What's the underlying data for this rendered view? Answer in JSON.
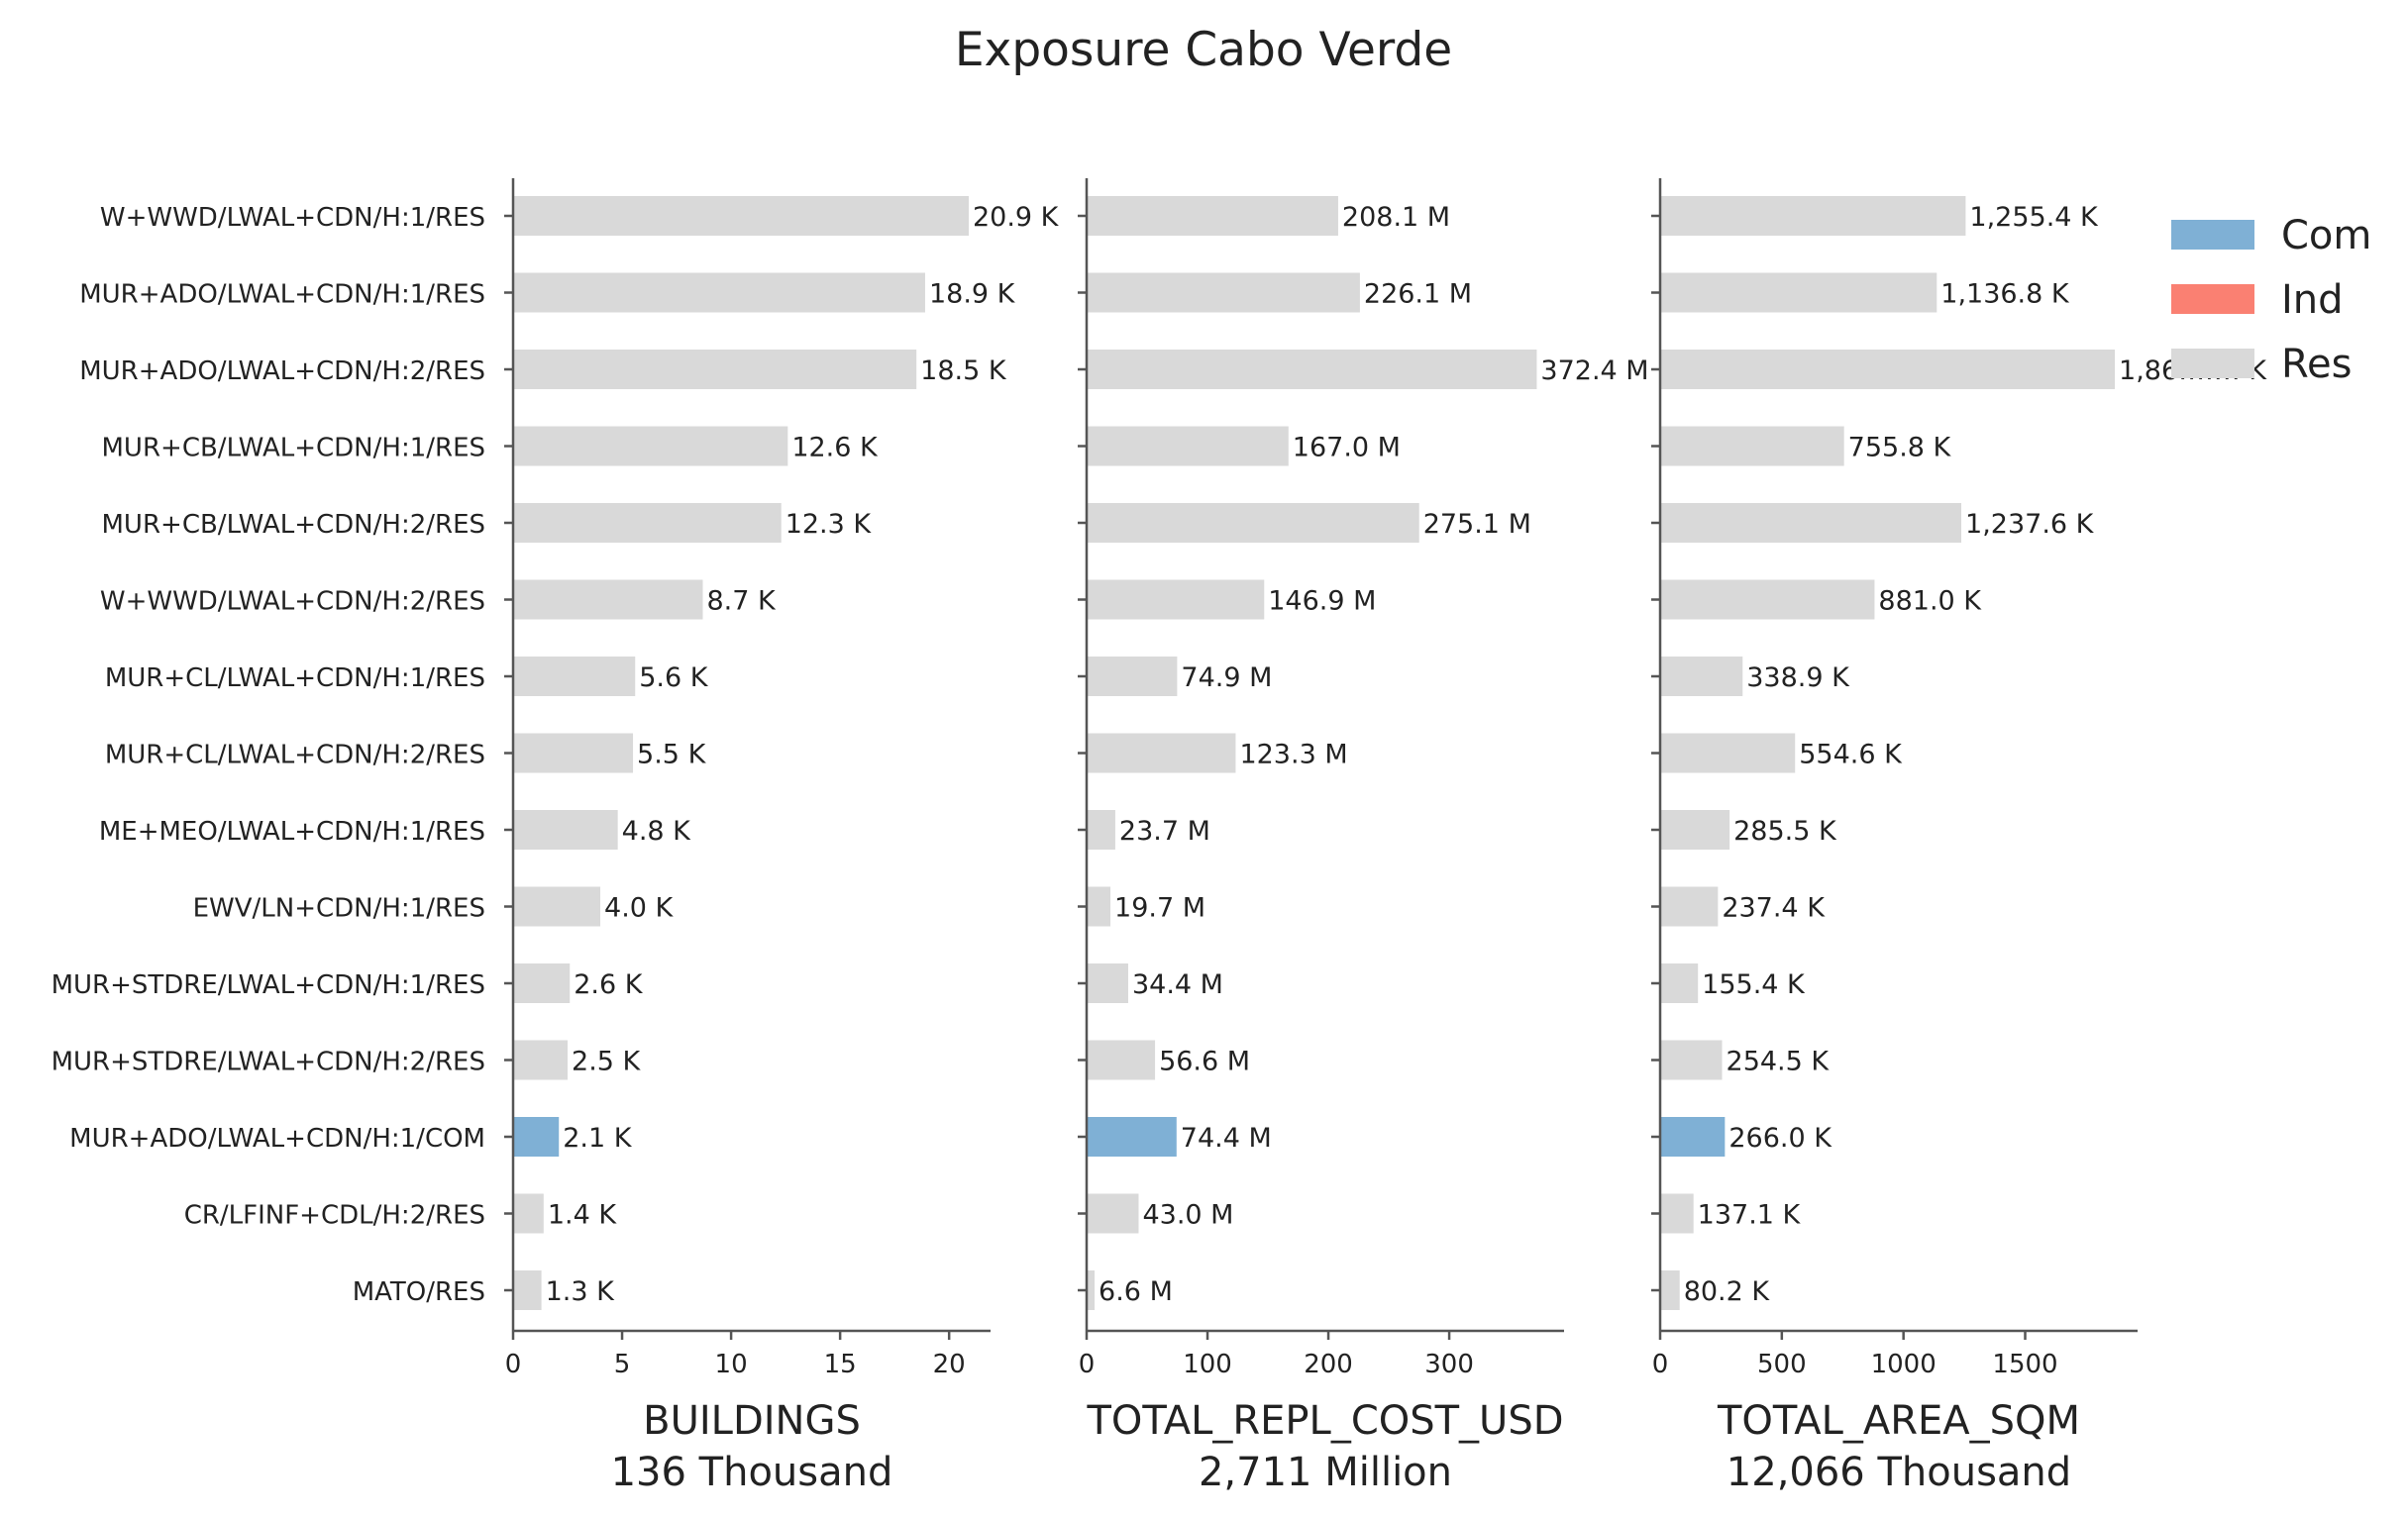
{
  "chart_data": {
    "type": "bar",
    "orientation": "horizontal",
    "title": "Exposure Cabo Verde",
    "categories": [
      "W+WWD/LWAL+CDN/H:1/RES",
      "MUR+ADO/LWAL+CDN/H:1/RES",
      "MUR+ADO/LWAL+CDN/H:2/RES",
      "MUR+CB/LWAL+CDN/H:1/RES",
      "MUR+CB/LWAL+CDN/H:2/RES",
      "W+WWD/LWAL+CDN/H:2/RES",
      "MUR+CL/LWAL+CDN/H:1/RES",
      "MUR+CL/LWAL+CDN/H:2/RES",
      "ME+MEO/LWAL+CDN/H:1/RES",
      "EWV/LN+CDN/H:1/RES",
      "MUR+STDRE/LWAL+CDN/H:1/RES",
      "MUR+STDRE/LWAL+CDN/H:2/RES",
      "MUR+ADO/LWAL+CDN/H:1/COM",
      "CR/LFINF+CDL/H:2/RES",
      "MATO/RES"
    ],
    "occupancy": [
      "Res",
      "Res",
      "Res",
      "Res",
      "Res",
      "Res",
      "Res",
      "Res",
      "Res",
      "Res",
      "Res",
      "Res",
      "Com",
      "Res",
      "Res"
    ],
    "legend": {
      "placement": "top-right",
      "entries": [
        {
          "name": "Com",
          "color": "#7fb0d5"
        },
        {
          "name": "Ind",
          "color": "#fa8072"
        },
        {
          "name": "Res",
          "color": "#d9d9d9"
        }
      ]
    },
    "panels": [
      {
        "xlabel": "BUILDINGS",
        "total": "136 Thousand",
        "xlim": [
          0,
          21.9
        ],
        "ticks": [
          0,
          5,
          10,
          15,
          20
        ],
        "tick_labels": [
          "0",
          "5",
          "10",
          "15",
          "20"
        ],
        "values": [
          20.9,
          18.9,
          18.5,
          12.6,
          12.3,
          8.7,
          5.6,
          5.5,
          4.8,
          4.0,
          2.6,
          2.5,
          2.1,
          1.4,
          1.3
        ],
        "data_labels": [
          "20.9 K",
          "18.9 K",
          "18.5 K",
          "12.6 K",
          "12.3 K",
          "8.7 K",
          "5.6 K",
          "5.5 K",
          "4.8 K",
          "4.0 K",
          "2.6 K",
          "2.5 K",
          "2.1 K",
          "1.4 K",
          "1.3 K"
        ]
      },
      {
        "xlabel": "TOTAL_REPL_COST_USD",
        "total": "2,711 Million",
        "xlim": [
          0,
          395
        ],
        "ticks": [
          0,
          100,
          200,
          300
        ],
        "tick_labels": [
          "0",
          "100",
          "200",
          "300"
        ],
        "values": [
          208.1,
          226.1,
          372.4,
          167.0,
          275.1,
          146.9,
          74.9,
          123.3,
          23.7,
          19.7,
          34.4,
          56.6,
          74.4,
          43.0,
          6.6
        ],
        "data_labels": [
          "208.1 M",
          "226.1 M",
          "372.4 M",
          "167.0 M",
          "275.1 M",
          "146.9 M",
          "74.9 M",
          "123.3 M",
          "23.7 M",
          "19.7 M",
          "34.4 M",
          "56.6 M",
          "74.4 M",
          "43.0 M",
          "6.6 M"
        ]
      },
      {
        "xlabel": "TOTAL_AREA_SQM",
        "total": "12,066 Thousand",
        "xlim": [
          0,
          1962
        ],
        "ticks": [
          0,
          500,
          1000,
          1500
        ],
        "tick_labels": [
          "0",
          "500",
          "1000",
          "1500"
        ],
        "values": [
          1255.4,
          1136.8,
          1868.5,
          755.8,
          1237.6,
          881.0,
          338.9,
          554.6,
          285.5,
          237.4,
          155.4,
          254.5,
          266.0,
          137.1,
          80.2
        ],
        "data_labels": [
          "1,255.4 K",
          "1,136.8 K",
          "1,86….… K",
          "755.8 K",
          "1,237.6 K",
          "881.0 K",
          "338.9 K",
          "554.6 K",
          "285.5 K",
          "237.4 K",
          "155.4 K",
          "254.5 K",
          "266.0 K",
          "137.1 K",
          "80.2 K"
        ]
      }
    ]
  }
}
